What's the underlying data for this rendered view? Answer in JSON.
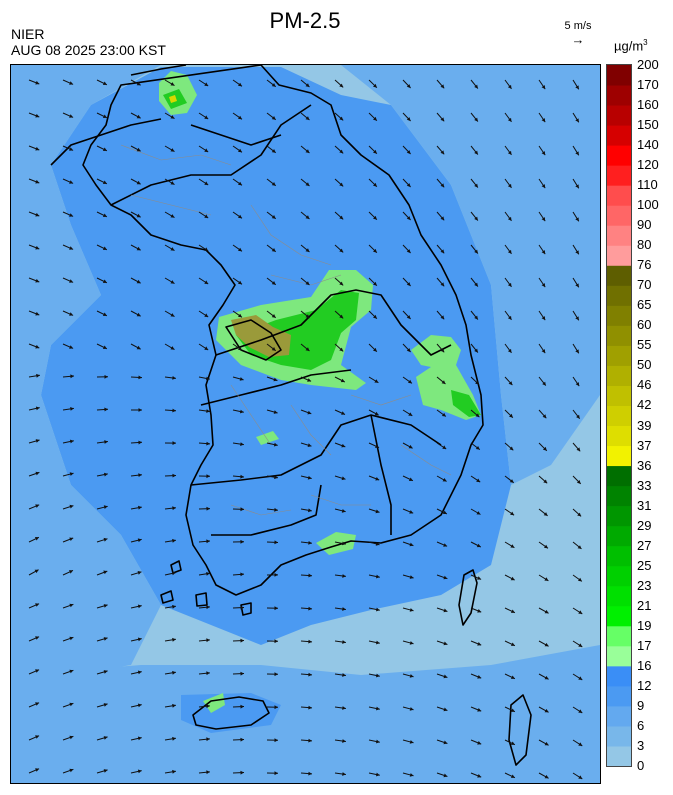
{
  "header": {
    "title": "PM-2.5",
    "agency": "NIER",
    "timestamp": "AUG 08 2025 23:00 KST",
    "wind_reference": "5 m/s",
    "unit": "µg/m",
    "unit_superscript": "3"
  },
  "legend": {
    "levels": [
      "0",
      "3",
      "6",
      "9",
      "12",
      "16",
      "17",
      "19",
      "21",
      "23",
      "25",
      "27",
      "29",
      "31",
      "33",
      "36",
      "37",
      "39",
      "42",
      "46",
      "50",
      "55",
      "60",
      "65",
      "70",
      "76",
      "80",
      "90",
      "100",
      "110",
      "120",
      "140",
      "150",
      "160",
      "170",
      "200"
    ],
    "colors": [
      "#94c7e6",
      "#78b7ea",
      "#63a9ef",
      "#4b9af2",
      "#3a8ef6",
      "#99ff99",
      "#66ff66",
      "#00f000",
      "#00e000",
      "#00d000",
      "#00bf00",
      "#00aa00",
      "#009600",
      "#008300",
      "#006f00",
      "#f2f200",
      "#dede00",
      "#cfcf00",
      "#c0c000",
      "#b0b000",
      "#a0a000",
      "#909000",
      "#808000",
      "#707000",
      "#5e5e00",
      "#ff9c9c",
      "#ff8282",
      "#ff6666",
      "#ff4d4d",
      "#ff1f1f",
      "#ff0000",
      "#d60000",
      "#b80000",
      "#9e0000",
      "#800000"
    ]
  },
  "map": {
    "background_color": "#94c7e6",
    "concentration_colors": {
      "ocean_clean": "#94c7e6",
      "low": "#6aaeee",
      "moderate": "#4b9af2",
      "light_green": "#7ee87e",
      "green": "#22cc22",
      "olive": "#9a9a3a"
    }
  }
}
